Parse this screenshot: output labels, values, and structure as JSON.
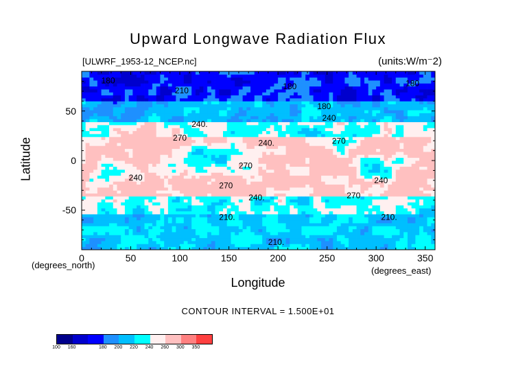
{
  "chart_data": {
    "type": "heatmap",
    "title": "Upward Longwave Radiation Flux",
    "subtitle_left": "[ULWRF_1953-12_NCEP.nc]",
    "subtitle_right": "(units:W/m^2)",
    "xlabel": "Longitude",
    "ylabel": "Latitude",
    "x_unit_label": "(degrees_east)",
    "y_unit_label": "(degrees_north)",
    "xlim": [
      0,
      360
    ],
    "ylim": [
      -90,
      90
    ],
    "xticks": [
      0,
      50,
      100,
      150,
      200,
      250,
      300,
      350
    ],
    "yticks": [
      -50,
      0,
      50
    ],
    "contour_interval_text": "CONTOUR INTERVAL = 1.500E+01",
    "contour_labels": [
      {
        "lon": 20,
        "lat": 78,
        "text": "180"
      },
      {
        "lon": 95,
        "lat": 68,
        "text": "210"
      },
      {
        "lon": 205,
        "lat": 72,
        "text": "180"
      },
      {
        "lon": 240,
        "lat": 52,
        "text": "180"
      },
      {
        "lon": 330,
        "lat": 75,
        "text": "180"
      },
      {
        "lon": 245,
        "lat": 40,
        "text": "240"
      },
      {
        "lon": 112,
        "lat": 34,
        "text": "240."
      },
      {
        "lon": 93,
        "lat": 20,
        "text": "270"
      },
      {
        "lon": 180,
        "lat": 15,
        "text": "240."
      },
      {
        "lon": 255,
        "lat": 17,
        "text": "270"
      },
      {
        "lon": 160,
        "lat": -8,
        "text": "270"
      },
      {
        "lon": 48,
        "lat": -20,
        "text": "240"
      },
      {
        "lon": 140,
        "lat": -28,
        "text": "270"
      },
      {
        "lon": 170,
        "lat": -40,
        "text": "240."
      },
      {
        "lon": 270,
        "lat": -38,
        "text": "270"
      },
      {
        "lon": 298,
        "lat": -23,
        "text": "240"
      },
      {
        "lon": 140,
        "lat": -60,
        "text": "210."
      },
      {
        "lon": 305,
        "lat": -60,
        "text": "210."
      },
      {
        "lon": 190,
        "lat": -85,
        "text": "210."
      }
    ],
    "colorbar": {
      "levels": [
        "100",
        "160",
        "180",
        "200",
        "220",
        "240",
        "260",
        "300",
        "350"
      ],
      "colors": [
        "#00008b",
        "#0000cd",
        "#0000ff",
        "#1e90ff",
        "#00bfff",
        "#00ffff",
        "#fff0f0",
        "#ffc0c0",
        "#ff8080",
        "#ff4040",
        "#ff0000"
      ]
    },
    "zonal_regions": [
      {
        "lat_range": [
          60,
          90
        ],
        "value": 170
      },
      {
        "lat_range": [
          40,
          60
        ],
        "value": 205
      },
      {
        "lat_range": [
          25,
          40
        ],
        "value": 245
      },
      {
        "lat_range": [
          -35,
          25
        ],
        "value": 270
      },
      {
        "lat_range": [
          -55,
          -35
        ],
        "value": 235
      },
      {
        "lat_range": [
          -90,
          -55
        ],
        "value": 215
      }
    ]
  }
}
